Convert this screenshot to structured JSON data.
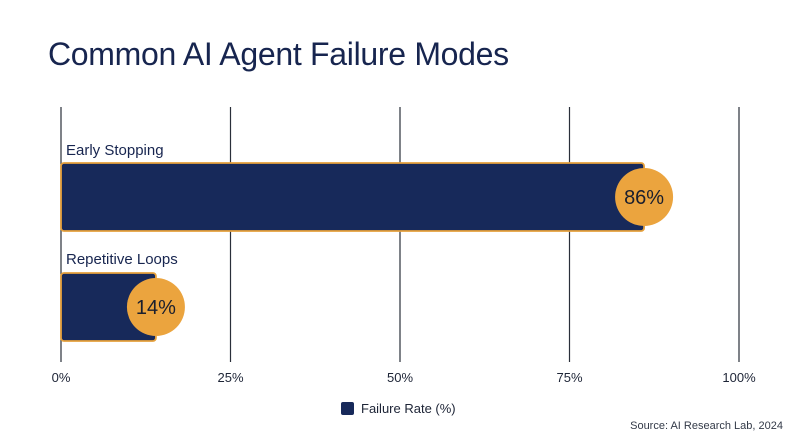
{
  "chart_data": {
    "type": "bar",
    "orientation": "horizontal",
    "title": "Common AI Agent Failure Modes",
    "categories": [
      "Early Stopping",
      "Repetitive Loops"
    ],
    "series": [
      {
        "name": "Failure Rate (%)",
        "values": [
          86,
          14
        ],
        "data_labels": [
          "86%",
          "14%"
        ]
      }
    ],
    "xlim": [
      0,
      100
    ],
    "x_ticks": [
      0,
      25,
      50,
      75,
      100
    ],
    "x_tick_labels": [
      "0%",
      "25%",
      "50%",
      "75%",
      "100%"
    ],
    "xlabel": "",
    "ylabel": "",
    "grid": "vertical",
    "legend_position": "bottom-center",
    "source": "Source: AI Research Lab, 2024",
    "colors": {
      "bar": "#17295a",
      "bar_edge": "#e5a03c",
      "label_badge": "#eba43e",
      "grid": "#2a2f3a",
      "text": "#17254f"
    }
  }
}
